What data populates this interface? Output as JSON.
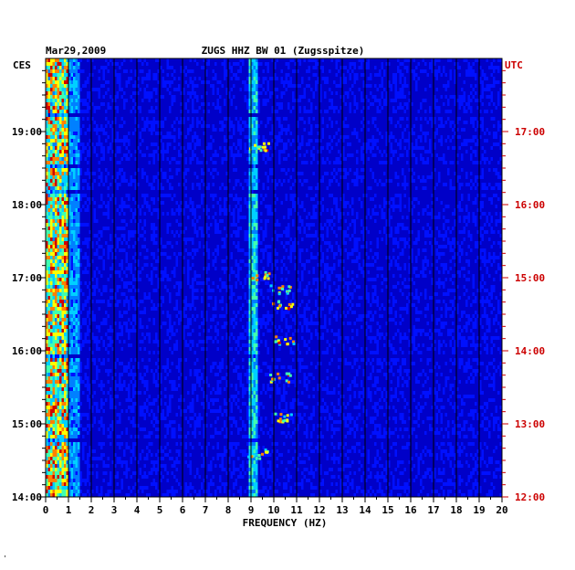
{
  "chart_data": {
    "type": "heatmap",
    "title": "ZUGS HHZ BW 01 (Zugsspitze)",
    "date": "Mar29,2009",
    "xlabel": "FREQUENCY (HZ)",
    "left_timezone": "CES",
    "right_timezone": "UTC",
    "xlim": [
      0,
      20
    ],
    "x_ticks": [
      0,
      1,
      2,
      3,
      4,
      5,
      6,
      7,
      8,
      9,
      10,
      11,
      12,
      13,
      14,
      15,
      16,
      17,
      18,
      19,
      20
    ],
    "y_range_hours_local": [
      14,
      20
    ],
    "y_ticks_local": [
      "14:00",
      "15:00",
      "16:00",
      "17:00",
      "18:00",
      "19:00"
    ],
    "y_ticks_utc": [
      "12:00",
      "13:00",
      "14:00",
      "15:00",
      "16:00",
      "17:00"
    ],
    "grid": true,
    "colormap": [
      "#0000a0",
      "#0010ff",
      "#0080ff",
      "#00d0ff",
      "#40ffb0",
      "#ffff00",
      "#ff8000",
      "#d00000"
    ],
    "features": [
      {
        "description": "strong low-frequency energy",
        "freq_range": [
          0.1,
          0.8
        ],
        "intensity": 0.9
      },
      {
        "description": "persistent line near 9 Hz",
        "freq_range": [
          8.9,
          9.2
        ],
        "intensity": 0.55
      },
      {
        "description": "intermittent bursts",
        "freq_range": [
          9.8,
          10.8
        ],
        "intensity": 0.7
      }
    ]
  },
  "colors": {
    "left_label": "#000000",
    "right_label": "#cc0000",
    "background": "#0000c8"
  }
}
